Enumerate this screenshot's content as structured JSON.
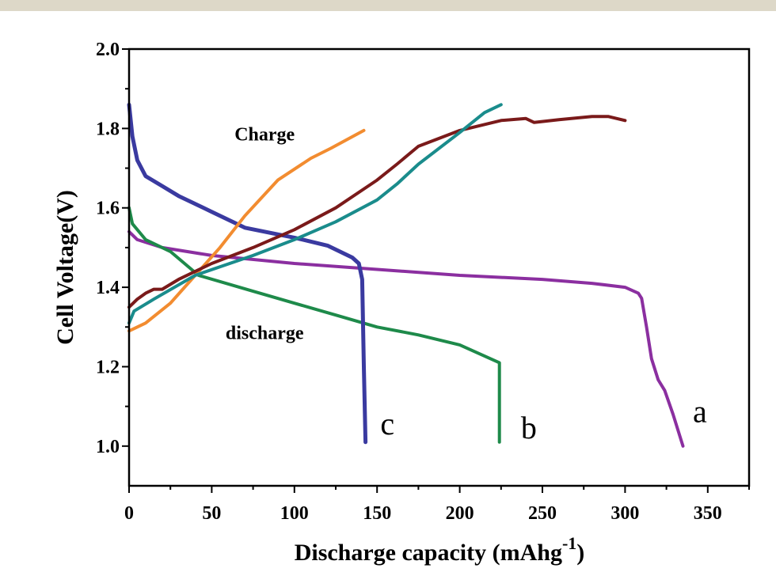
{
  "chart_data": {
    "type": "line",
    "title": "",
    "xlabel": "Discharge capacity (mAhg",
    "xlabel_superscript": "-1",
    "xlabel_suffix": ")",
    "ylabel": "Cell Voltage(V)",
    "xlim": [
      0,
      375
    ],
    "ylim": [
      0.9,
      2.0
    ],
    "xticks": [
      0,
      50,
      100,
      150,
      200,
      250,
      300,
      350
    ],
    "yticks": [
      1.0,
      1.2,
      1.4,
      1.6,
      1.8,
      2.0
    ],
    "xtick_labels": [
      "0",
      "50",
      "100",
      "150",
      "200",
      "250",
      "300",
      "350"
    ],
    "ytick_labels": [
      "1.0",
      "1.2",
      "1.4",
      "1.6",
      "1.8",
      "2.0"
    ],
    "grid": false,
    "annotations": [
      {
        "text": "Charge",
        "x": 82,
        "y": 1.77
      },
      {
        "text": "discharge",
        "x": 82,
        "y": 1.27
      },
      {
        "text": "a",
        "x": 341,
        "y": 1.06
      },
      {
        "text": "b",
        "x": 237,
        "y": 1.02
      },
      {
        "text": "c",
        "x": 152,
        "y": 1.03
      }
    ],
    "series": [
      {
        "label": "a",
        "kind": "discharge",
        "color": "#8b2fa0",
        "points": [
          [
            0,
            1.54
          ],
          [
            5,
            1.52
          ],
          [
            20,
            1.5
          ],
          [
            50,
            1.48
          ],
          [
            100,
            1.46
          ],
          [
            150,
            1.445
          ],
          [
            200,
            1.43
          ],
          [
            250,
            1.42
          ],
          [
            280,
            1.41
          ],
          [
            300,
            1.4
          ],
          [
            308,
            1.385
          ],
          [
            310,
            1.372
          ],
          [
            313,
            1.3
          ],
          [
            316,
            1.22
          ],
          [
            320,
            1.167
          ],
          [
            324,
            1.14
          ],
          [
            329,
            1.08
          ],
          [
            335,
            1.0
          ]
        ]
      },
      {
        "label": "b",
        "kind": "discharge",
        "color": "#1e8a4a",
        "points": [
          [
            0,
            1.6
          ],
          [
            2,
            1.56
          ],
          [
            10,
            1.52
          ],
          [
            25,
            1.49
          ],
          [
            42,
            1.43
          ],
          [
            75,
            1.39
          ],
          [
            100,
            1.36
          ],
          [
            125,
            1.33
          ],
          [
            150,
            1.3
          ],
          [
            175,
            1.28
          ],
          [
            200,
            1.255
          ],
          [
            224,
            1.21
          ],
          [
            224,
            1.01
          ]
        ]
      },
      {
        "label": "c",
        "kind": "discharge",
        "color": "#3a3aa0",
        "points": [
          [
            0,
            1.86
          ],
          [
            2,
            1.78
          ],
          [
            5,
            1.72
          ],
          [
            10,
            1.68
          ],
          [
            20,
            1.655
          ],
          [
            30,
            1.63
          ],
          [
            50,
            1.59
          ],
          [
            70,
            1.55
          ],
          [
            100,
            1.525
          ],
          [
            120,
            1.505
          ],
          [
            135,
            1.475
          ],
          [
            139,
            1.46
          ],
          [
            141,
            1.42
          ],
          [
            142,
            1.2
          ],
          [
            143,
            1.01
          ]
        ]
      },
      {
        "label": "c",
        "kind": "charge",
        "color": "#f28c30",
        "points": [
          [
            0,
            1.29
          ],
          [
            10,
            1.31
          ],
          [
            25,
            1.36
          ],
          [
            40,
            1.43
          ],
          [
            55,
            1.5
          ],
          [
            70,
            1.58
          ],
          [
            90,
            1.67
          ],
          [
            110,
            1.725
          ],
          [
            122,
            1.75
          ],
          [
            142,
            1.795
          ]
        ]
      },
      {
        "label": "a",
        "kind": "charge",
        "color": "#7a1a1a",
        "points": [
          [
            0,
            1.35
          ],
          [
            5,
            1.37
          ],
          [
            10,
            1.385
          ],
          [
            15,
            1.395
          ],
          [
            20,
            1.395
          ],
          [
            30,
            1.42
          ],
          [
            50,
            1.46
          ],
          [
            75,
            1.5
          ],
          [
            100,
            1.545
          ],
          [
            125,
            1.6
          ],
          [
            150,
            1.67
          ],
          [
            162,
            1.71
          ],
          [
            175,
            1.755
          ],
          [
            200,
            1.795
          ],
          [
            225,
            1.82
          ],
          [
            240,
            1.825
          ],
          [
            245,
            1.815
          ],
          [
            260,
            1.822
          ],
          [
            280,
            1.83
          ],
          [
            290,
            1.83
          ],
          [
            300,
            1.82
          ]
        ]
      },
      {
        "label": "b",
        "kind": "charge",
        "color": "#1a8c8c",
        "points": [
          [
            0,
            1.31
          ],
          [
            3,
            1.34
          ],
          [
            15,
            1.37
          ],
          [
            40,
            1.43
          ],
          [
            75,
            1.48
          ],
          [
            100,
            1.52
          ],
          [
            125,
            1.565
          ],
          [
            150,
            1.62
          ],
          [
            162,
            1.66
          ],
          [
            175,
            1.71
          ],
          [
            200,
            1.79
          ],
          [
            215,
            1.84
          ],
          [
            225,
            1.86
          ]
        ]
      }
    ]
  }
}
